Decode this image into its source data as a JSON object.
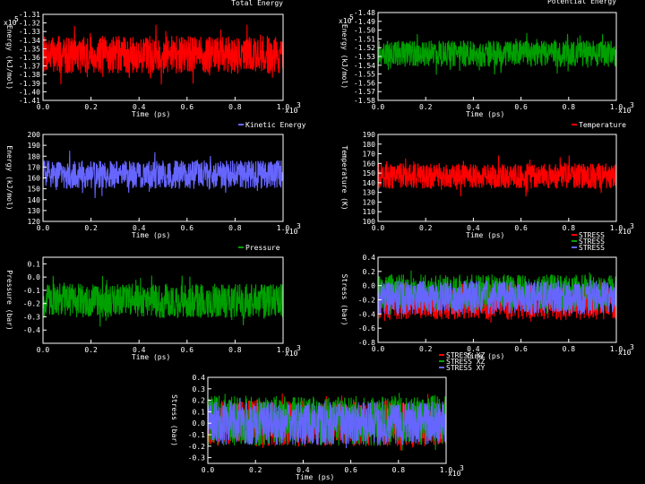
{
  "chart_data": [
    {
      "type": "line",
      "title": "Total Energy",
      "xlabel": "Time (ps)",
      "ylabel": "Energy (kJ/mol)",
      "x_multiplier": "x10",
      "x_multiplier_exp": "3",
      "xlim": [
        0,
        1.0
      ],
      "ylim": [
        -1.41,
        -1.31
      ],
      "xticks": [
        "0.0",
        "0.2",
        "0.4",
        "0.6",
        "0.8",
        "1.0"
      ],
      "yticks": [
        "-1.31",
        "-1.32",
        "-1.33",
        "-1.34",
        "-1.35",
        "-1.36",
        "-1.37",
        "-1.38",
        "-1.39",
        "-1.40",
        "-1.41"
      ],
      "y_multiplier": "x10",
      "y_multiplier_exp": "5",
      "series": [
        {
          "name": "",
          "color": "#ff0000",
          "mean": -1.357,
          "amplitude": 0.022,
          "spike": 0.035
        }
      ]
    },
    {
      "type": "line",
      "title": "Potential Energy",
      "xlabel": "Time (ps)",
      "ylabel": "Energy (kJ/mol)",
      "x_multiplier": "x10",
      "x_multiplier_exp": "3",
      "xlim": [
        0,
        1.0
      ],
      "ylim": [
        -1.58,
        -1.48
      ],
      "xticks": [
        "0.0",
        "0.2",
        "0.4",
        "0.6",
        "0.8",
        "1.0"
      ],
      "yticks": [
        "-1.48",
        "-1.49",
        "-1.50",
        "-1.51",
        "-1.52",
        "-1.53",
        "-1.54",
        "-1.55",
        "-1.56",
        "-1.57",
        "-1.58"
      ],
      "y_multiplier": "x10",
      "y_multiplier_exp": "5",
      "series": [
        {
          "name": "",
          "color": "#00a000",
          "mean": -1.527,
          "amplitude": 0.015,
          "spike": 0.025
        }
      ]
    },
    {
      "type": "line",
      "title": "",
      "xlabel": "Time (ps)",
      "ylabel": "Energy (kJ/mol)",
      "x_multiplier": "x10",
      "x_multiplier_exp": "3",
      "xlim": [
        0,
        1.0
      ],
      "ylim": [
        120,
        200
      ],
      "xticks": [
        "0.0",
        "0.2",
        "0.4",
        "0.6",
        "0.8",
        "1.0"
      ],
      "yticks": [
        "120",
        "130",
        "140",
        "150",
        "160",
        "170",
        "180",
        "190",
        "200"
      ],
      "legend": [
        "Kinetic Energy"
      ],
      "series": [
        {
          "name": "Kinetic Energy",
          "color": "#6666ff",
          "mean": 163,
          "amplitude": 13,
          "spike": 22
        }
      ]
    },
    {
      "type": "line",
      "title": "",
      "xlabel": "Time (ps)",
      "ylabel": "Temperature (K)",
      "x_multiplier": "x10",
      "x_multiplier_exp": "3",
      "xlim": [
        0,
        1.0
      ],
      "ylim": [
        100,
        190
      ],
      "xticks": [
        "0.0",
        "0.2",
        "0.4",
        "0.6",
        "0.8",
        "1.0"
      ],
      "yticks": [
        "100",
        "110",
        "120",
        "130",
        "140",
        "150",
        "160",
        "170",
        "180",
        "190"
      ],
      "legend": [
        "Temperature"
      ],
      "series": [
        {
          "name": "Temperature",
          "color": "#ff0000",
          "mean": 147,
          "amplitude": 13,
          "spike": 22
        }
      ]
    },
    {
      "type": "line",
      "title": "",
      "xlabel": "Time (ps)",
      "ylabel": "Pressure (bar)",
      "x_multiplier": "x10",
      "x_multiplier_exp": "3",
      "xlim": [
        0,
        1.0
      ],
      "ylim": [
        -0.5,
        0.15
      ],
      "xticks": [
        "0.0",
        "0.2",
        "0.4",
        "0.6",
        "0.8",
        "1.0"
      ],
      "yticks": [
        "0.1",
        "0.0",
        "-0.1",
        "-0.2",
        "-0.3",
        "-0.4"
      ],
      "legend": [
        "Pressure"
      ],
      "series": [
        {
          "name": "Pressure",
          "color": "#00a000",
          "mean": -0.18,
          "amplitude": 0.13,
          "spike": 0.2
        }
      ]
    },
    {
      "type": "line",
      "title": "",
      "xlabel": "Time (ps)",
      "ylabel": "Stress (bar)",
      "x_multiplier": "x10",
      "x_multiplier_exp": "3",
      "xlim": [
        0,
        1.0
      ],
      "ylim": [
        -0.8,
        0.4
      ],
      "xticks": [
        "0.0",
        "0.2",
        "0.4",
        "0.6",
        "0.8",
        "1.0"
      ],
      "yticks": [
        "0.4",
        "0.2",
        "0.0",
        "-0.2",
        "-0.4",
        "-0.6",
        "-0.8"
      ],
      "legend": [
        "STRESS",
        "STRESS",
        "STRESS"
      ],
      "series": [
        {
          "name": "STRESS",
          "color": "#ff0000",
          "mean": -0.22,
          "amplitude": 0.26,
          "spike": 0.32
        },
        {
          "name": "STRESS",
          "color": "#00a000",
          "mean": -0.1,
          "amplitude": 0.26,
          "spike": 0.32
        },
        {
          "name": "STRESS",
          "color": "#6666ff",
          "mean": -0.17,
          "amplitude": 0.24,
          "spike": 0.28
        }
      ]
    },
    {
      "type": "line",
      "title": "",
      "xlabel": "Time (ps)",
      "ylabel": "Stress (bar)",
      "x_multiplier": "x10",
      "x_multiplier_exp": "3",
      "xlim": [
        0,
        1.0
      ],
      "ylim": [
        -0.35,
        0.4
      ],
      "xticks": [
        "0.0",
        "0.2",
        "0.4",
        "0.6",
        "0.8",
        "1.0"
      ],
      "yticks": [
        "0.4",
        "0.3",
        "0.2",
        "0.1",
        "0.0",
        "-0.1",
        "-0.2",
        "-0.3"
      ],
      "legend": [
        "STRESS YZ",
        "STRESS XZ",
        "STRESS XY"
      ],
      "series": [
        {
          "name": "STRESS YZ",
          "color": "#ff0000",
          "mean": 0.0,
          "amplitude": 0.2,
          "spike": 0.26
        },
        {
          "name": "STRESS XZ",
          "color": "#00a000",
          "mean": 0.02,
          "amplitude": 0.22,
          "spike": 0.28
        },
        {
          "name": "STRESS XY",
          "color": "#6666ff",
          "mean": 0.0,
          "amplitude": 0.19,
          "spike": 0.22
        }
      ]
    }
  ]
}
